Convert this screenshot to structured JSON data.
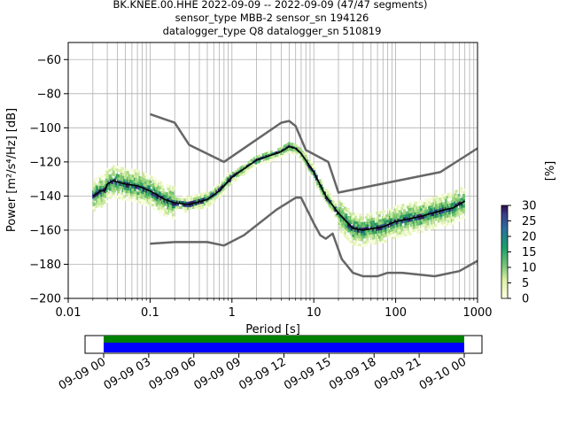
{
  "title_lines": [
    "BK.KNEE.00.HHE   2022-09-09 -- 2022-09-09  (47/47 segments)",
    "sensor_type MBB-2 sensor_sn 194126",
    "datalogger_type Q8 datalogger_sn 510819"
  ],
  "chart_data": {
    "type": "heatmap",
    "xlabel": "Period [s]",
    "ylabel": "Power [m²/s⁴/Hz] [dB]",
    "xscale": "log",
    "xlim": [
      0.01,
      1000
    ],
    "ylim": [
      -200,
      -50
    ],
    "x_tick_labels": [
      "0.01",
      "0.1",
      "1",
      "10",
      "100",
      "1000"
    ],
    "y_ticks": [
      -60,
      -80,
      -100,
      -120,
      -140,
      -160,
      -180,
      -200
    ],
    "y_tick_labels": [
      "−60",
      "−80",
      "−100",
      "−120",
      "−140",
      "−160",
      "−180",
      "−200"
    ],
    "grid": true,
    "series": [
      {
        "style": "dark-gray",
        "points": [
          [
            0.1,
            -92
          ],
          [
            0.2,
            -97
          ],
          [
            0.3,
            -110
          ],
          [
            0.8,
            -120
          ],
          [
            4,
            -97
          ],
          [
            5,
            -96
          ],
          [
            6,
            -99
          ],
          [
            8,
            -113
          ],
          [
            15,
            -120
          ],
          [
            20,
            -138
          ],
          [
            350,
            -126
          ],
          [
            1000,
            -112
          ]
        ]
      },
      {
        "style": "dark-gray",
        "points": [
          [
            0.1,
            -168
          ],
          [
            0.2,
            -167
          ],
          [
            0.5,
            -167
          ],
          [
            0.8,
            -169
          ],
          [
            1.4,
            -163
          ],
          [
            3.5,
            -148
          ],
          [
            6,
            -141
          ],
          [
            7,
            -141
          ],
          [
            10,
            -156
          ],
          [
            12,
            -163
          ],
          [
            14,
            -165
          ],
          [
            17,
            -162
          ],
          [
            22,
            -177
          ],
          [
            30,
            -185
          ],
          [
            40,
            -187
          ],
          [
            60,
            -187
          ],
          [
            80,
            -185
          ],
          [
            120,
            -185
          ],
          [
            300,
            -187
          ],
          [
            600,
            -184
          ],
          [
            1000,
            -178
          ]
        ]
      },
      {
        "style": "black",
        "points": [
          [
            0.02,
            -140
          ],
          [
            0.025,
            -137
          ],
          [
            0.028,
            -137
          ],
          [
            0.03,
            -133
          ],
          [
            0.035,
            -131
          ],
          [
            0.05,
            -133
          ],
          [
            0.07,
            -134
          ],
          [
            0.1,
            -137
          ],
          [
            0.15,
            -142
          ],
          [
            0.2,
            -144
          ],
          [
            0.3,
            -145
          ],
          [
            0.5,
            -142
          ],
          [
            0.7,
            -137
          ],
          [
            1,
            -129
          ],
          [
            2,
            -119
          ],
          [
            3,
            -116
          ],
          [
            4,
            -114
          ],
          [
            5,
            -111
          ],
          [
            6,
            -112
          ],
          [
            7,
            -115
          ],
          [
            10,
            -126
          ],
          [
            14,
            -140
          ],
          [
            20,
            -150
          ],
          [
            30,
            -159
          ],
          [
            40,
            -160
          ],
          [
            70,
            -158
          ],
          [
            100,
            -155
          ],
          [
            200,
            -152
          ],
          [
            400,
            -148
          ],
          [
            500,
            -147
          ],
          [
            700,
            -143
          ]
        ]
      }
    ],
    "colorbar": {
      "label": "[%]",
      "min": 0,
      "max": 30,
      "ticks": [
        "0",
        "5",
        "10",
        "15",
        "20",
        "25",
        "30"
      ]
    }
  },
  "timeline": {
    "tick_labels": [
      "09-09 00",
      "09-09 03",
      "09-09 06",
      "09-09 09",
      "09-09 12",
      "09-09 15",
      "09-09 18",
      "09-09 21",
      "09-10 00"
    ],
    "data_color": "#008000",
    "coverage_color": "#0000ff"
  }
}
